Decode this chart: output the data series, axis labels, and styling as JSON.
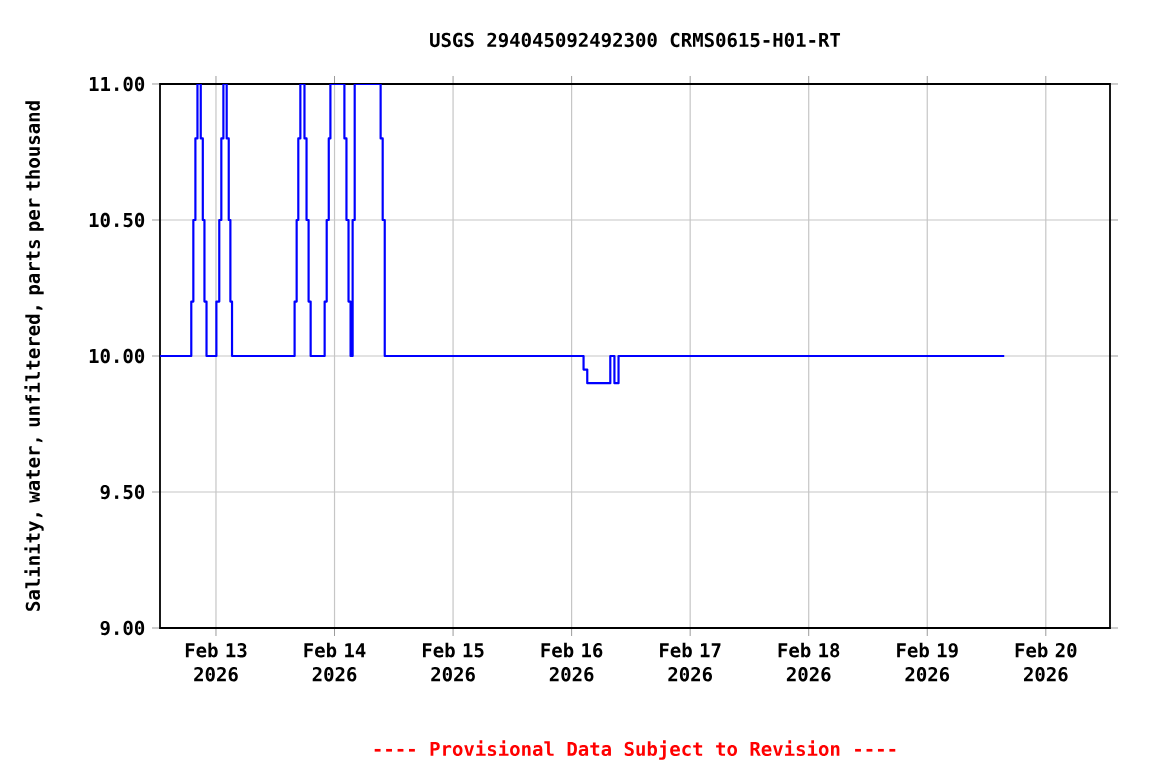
{
  "chart_data": {
    "type": "step",
    "title": "USGS 294045092492300 CRMS0615-H01-RT",
    "ylabel": "Salinity, water, unfiltered, parts per thousand",
    "annotations": [
      "---- Provisional Data Subject to Revision ----"
    ],
    "x": [
      "2026-02-12T12:40",
      "2026-02-12T19:00",
      "2026-02-12T19:25",
      "2026-02-12T19:50",
      "2026-02-12T20:15",
      "2026-02-12T20:55",
      "2026-02-12T21:20",
      "2026-02-12T21:40",
      "2026-02-12T22:05",
      "2026-02-13T00:05",
      "2026-02-13T00:40",
      "2026-02-13T01:05",
      "2026-02-13T01:30",
      "2026-02-13T02:10",
      "2026-02-13T02:35",
      "2026-02-13T02:55",
      "2026-02-13T03:15",
      "2026-02-13T15:55",
      "2026-02-13T16:20",
      "2026-02-13T16:40",
      "2026-02-13T17:05",
      "2026-02-13T17:55",
      "2026-02-13T18:20",
      "2026-02-13T18:45",
      "2026-02-13T19:10",
      "2026-02-13T22:00",
      "2026-02-13T22:25",
      "2026-02-13T22:50",
      "2026-02-13T23:10",
      "2026-02-14T02:00",
      "2026-02-14T02:25",
      "2026-02-14T02:50",
      "2026-02-14T03:15",
      "2026-02-14T03:40",
      "2026-02-14T04:05",
      "2026-02-14T09:20",
      "2026-02-14T09:45",
      "2026-02-14T10:10",
      "2026-02-16T02:25",
      "2026-02-16T03:10",
      "2026-02-16T07:50",
      "2026-02-16T08:40",
      "2026-02-16T09:30",
      "2026-02-19T15:35"
    ],
    "series": [
      {
        "color": "#0000ff",
        "values": [
          10.0,
          10.2,
          10.5,
          10.8,
          11.0,
          10.8,
          10.5,
          10.2,
          10.0,
          10.2,
          10.5,
          10.8,
          11.0,
          10.8,
          10.5,
          10.2,
          10.0,
          10.2,
          10.5,
          10.8,
          11.0,
          10.8,
          10.5,
          10.2,
          10.0,
          10.2,
          10.5,
          10.8,
          11.0,
          10.8,
          10.5,
          10.2,
          10.0,
          10.5,
          11.0,
          10.8,
          10.5,
          10.0,
          9.95,
          9.9,
          10.0,
          9.9,
          10.0,
          10.0
        ]
      }
    ],
    "xlim": [
      "2026-02-12T12:40",
      "2026-02-20T13:00"
    ],
    "xticks": [
      {
        "value": "2026-02-13",
        "label": "Feb 13 2026"
      },
      {
        "value": "2026-02-14",
        "label": "Feb 14 2026"
      },
      {
        "value": "2026-02-15",
        "label": "Feb 15 2026"
      },
      {
        "value": "2026-02-16",
        "label": "Feb 16 2026"
      },
      {
        "value": "2026-02-17",
        "label": "Feb 17 2026"
      },
      {
        "value": "2026-02-18",
        "label": "Feb 18 2026"
      },
      {
        "value": "2026-02-19",
        "label": "Feb 19 2026"
      },
      {
        "value": "2026-02-20",
        "label": "Feb 20 2026"
      }
    ],
    "ylim": [
      9.0,
      11.0
    ],
    "yticks": [
      {
        "value": 9.0,
        "label": "9.00"
      },
      {
        "value": 9.5,
        "label": "9.50"
      },
      {
        "value": 10.0,
        "label": "10.00"
      },
      {
        "value": 10.5,
        "label": "10.50"
      },
      {
        "value": 11.0,
        "label": "11.00"
      }
    ],
    "grid": true
  }
}
